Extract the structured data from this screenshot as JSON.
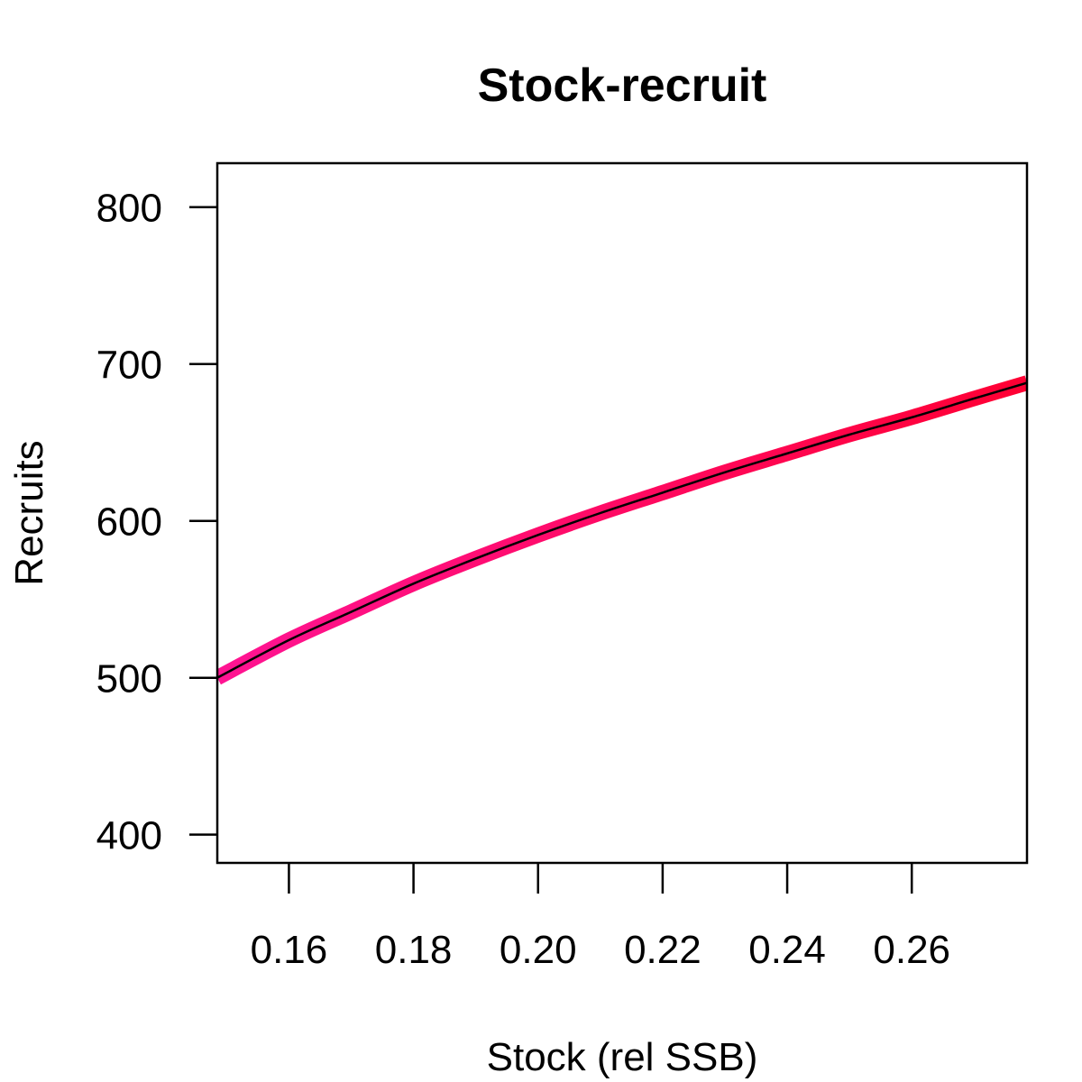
{
  "chart_data": {
    "type": "line",
    "title": "Stock-recruit",
    "xlabel": "Stock (rel SSB)",
    "ylabel": "Recruits",
    "xlim": [
      0.1485,
      0.2785
    ],
    "ylim": [
      382,
      828
    ],
    "xticks": [
      0.16,
      0.18,
      0.2,
      0.22,
      0.24,
      0.26
    ],
    "xtick_labels": [
      "0.16",
      "0.18",
      "0.20",
      "0.22",
      "0.24",
      "0.26"
    ],
    "yticks": [
      400,
      500,
      600,
      700,
      800
    ],
    "ytick_labels": [
      "400",
      "500",
      "600",
      "700",
      "800"
    ],
    "grid": false,
    "band_colors": [
      "#ff1493",
      "#ff0033"
    ],
    "line_color": "#000000",
    "series": [
      {
        "x": [
          0.1485,
          0.16,
          0.17,
          0.18,
          0.19,
          0.2,
          0.21,
          0.22,
          0.23,
          0.24,
          0.25,
          0.26,
          0.27,
          0.2785
        ],
        "values": [
          500,
          524,
          542,
          560,
          576,
          591,
          605,
          618,
          631,
          643,
          655,
          666,
          678,
          688
        ]
      }
    ]
  }
}
